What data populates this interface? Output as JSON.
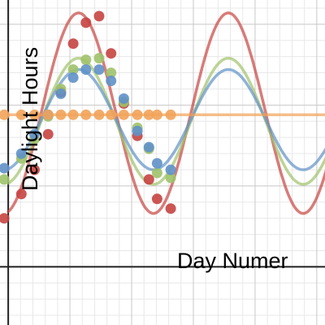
{
  "chart_data": {
    "type": "scatter",
    "xlabel": "Day Numer",
    "ylabel": "Daylight Hours",
    "xlim": [
      -20,
      770
    ],
    "ylim": [
      -3.6,
      16.5
    ],
    "grid": true,
    "series": [
      {
        "color": "#c74440",
        "points": [
          [
            -10,
            3
          ],
          [
            32,
            4.5
          ],
          [
            64,
            6
          ],
          [
            97,
            8.2
          ],
          [
            128,
            10.8
          ],
          [
            158,
            13.8
          ],
          [
            189,
            15.1
          ],
          [
            221,
            15.5
          ],
          [
            250,
            13.2
          ],
          [
            281,
            10.1
          ],
          [
            314,
            8.1
          ],
          [
            342,
            5.4
          ],
          [
            362,
            4.2
          ],
          [
            395,
            3.6
          ]
        ],
        "fit": {
          "amp": 6.2,
          "period": 364,
          "phase": 80,
          "mid": 9.5,
          "from": 0,
          "to": 800
        }
      },
      {
        "color": "#9fc26a",
        "points": [
          [
            -10,
            5.4
          ],
          [
            32,
            6.7
          ],
          [
            64,
            7.9
          ],
          [
            97,
            9.3
          ],
          [
            128,
            11
          ],
          [
            158,
            12.2
          ],
          [
            189,
            12.8
          ],
          [
            221,
            12.9
          ],
          [
            250,
            12
          ],
          [
            281,
            10.2
          ],
          [
            314,
            8.6
          ],
          [
            342,
            7.3
          ],
          [
            362,
            5.8
          ],
          [
            395,
            5.5
          ]
        ],
        "fit": {
          "amp": 3.9,
          "period": 364,
          "phase": 80,
          "mid": 9.0,
          "from": 0,
          "to": 800
        }
      },
      {
        "color": "#5f91c8",
        "points": [
          [
            -10,
            6.1
          ],
          [
            32,
            7
          ],
          [
            64,
            8.2
          ],
          [
            97,
            9.4
          ],
          [
            128,
            10.7
          ],
          [
            158,
            11.7
          ],
          [
            189,
            12.2
          ],
          [
            221,
            12.2
          ],
          [
            250,
            11.5
          ],
          [
            281,
            10.4
          ],
          [
            314,
            8.4
          ],
          [
            342,
            7.4
          ],
          [
            362,
            6.4
          ],
          [
            395,
            6
          ]
        ],
        "fit": {
          "amp": 3.1,
          "period": 364,
          "phase": 80,
          "mid": 9.1,
          "from": 0,
          "to": 800
        }
      },
      {
        "color": "#f2a359",
        "points": [
          [
            -10,
            9.4
          ],
          [
            32,
            9.4
          ],
          [
            64,
            9.4
          ],
          [
            97,
            9.4
          ],
          [
            128,
            9.4
          ],
          [
            158,
            9.4
          ],
          [
            189,
            9.4
          ],
          [
            221,
            9.4
          ],
          [
            250,
            9.4
          ],
          [
            281,
            9.4
          ],
          [
            314,
            9.4
          ],
          [
            342,
            9.4
          ],
          [
            362,
            9.4
          ],
          [
            395,
            9.4
          ]
        ],
        "fit": {
          "amp": 0,
          "period": 364,
          "phase": 80,
          "mid": 9.4,
          "from": 0,
          "to": 800
        }
      }
    ]
  }
}
